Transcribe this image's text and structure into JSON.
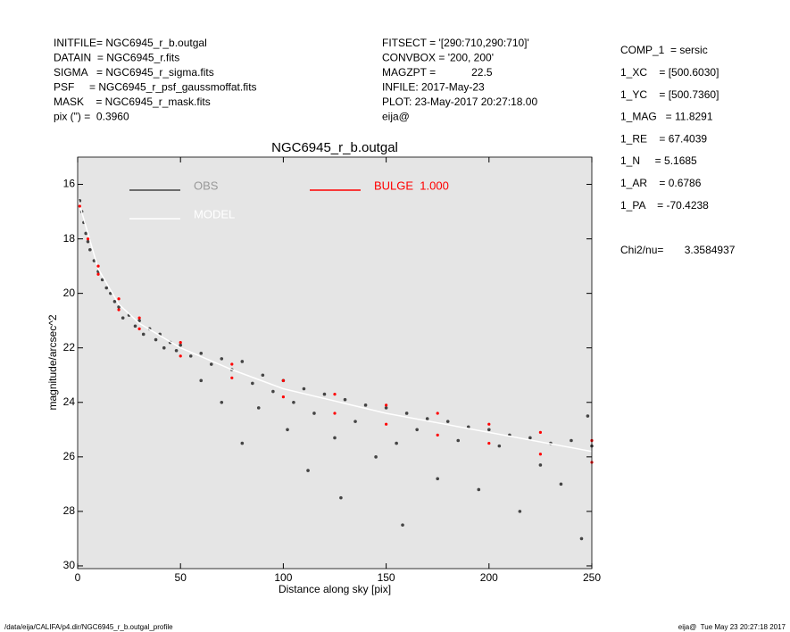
{
  "header": {
    "left": [
      "INITFILE= NGC6945_r_b.outgal",
      "DATAIN  = NGC6945_r.fits",
      "SIGMA   = NGC6945_r_sigma.fits",
      "PSF     = NGC6945_r_psf_gaussmoffat.fits",
      "MASK    = NGC6945_r_mask.fits",
      "pix (\") =  0.3960"
    ],
    "middle": [
      "FITSECT = '[290:710,290:710]'",
      "CONVBOX = '200, 200'",
      "MAGZPT =            22.5",
      "INFILE: 2017-May-23",
      "PLOT: 23-May-2017 20:27:18.00",
      "eija@"
    ],
    "right": [
      "COMP_1  = sersic",
      "1_XC    = [500.6030]",
      "1_YC    = [500.7360]",
      "1_MAG   = 11.8291",
      "1_RE    = 67.4039",
      "1_N     = 5.1685",
      "1_AR    = 0.6786",
      "1_PA    = -70.4238"
    ],
    "chi2": "Chi2/nu=       3.3584937"
  },
  "footer": {
    "left": "/data/eija/CALIFA/p4.dir/NGC6945_r_b.outgal_profile",
    "right": "eija@  Tue May 23 20:27:18 2017"
  },
  "chart_data": {
    "type": "scatter",
    "title": "NGC6945_r_b.outgal",
    "x_label": "Distance along sky [pix]",
    "y_label": "magnitude/arcsec^2",
    "xlim": [
      0,
      250
    ],
    "xticks": [
      0,
      50,
      100,
      150,
      200,
      250
    ],
    "ylim": [
      30.1,
      15
    ],
    "yticks": [
      16,
      18,
      20,
      22,
      24,
      26,
      28,
      30
    ],
    "background": "#e5e5e5",
    "series": [
      {
        "name": "OBS",
        "color": "#444444",
        "x": [
          1,
          2,
          3,
          4,
          5,
          6,
          8,
          10,
          12,
          14,
          16,
          18,
          20,
          22,
          25,
          28,
          30,
          32,
          35,
          38,
          40,
          42,
          45,
          48,
          50,
          55,
          60,
          65,
          70,
          75,
          80,
          85,
          88,
          90,
          95,
          100,
          102,
          105,
          110,
          112,
          115,
          120,
          125,
          128,
          130,
          135,
          140,
          145,
          150,
          155,
          158,
          160,
          165,
          170,
          175,
          180,
          185,
          190,
          195,
          200,
          205,
          210,
          215,
          220,
          225,
          230,
          235,
          240,
          245,
          250,
          248,
          60,
          70,
          80
        ],
        "values": [
          16.6,
          17.0,
          17.4,
          17.8,
          18.1,
          18.4,
          18.8,
          19.2,
          19.5,
          19.8,
          20.0,
          20.3,
          20.5,
          20.9,
          20.8,
          21.2,
          21.0,
          21.5,
          21.3,
          21.7,
          21.5,
          22.0,
          21.8,
          22.1,
          21.9,
          22.3,
          22.2,
          22.6,
          22.4,
          22.8,
          22.5,
          23.3,
          24.2,
          23.0,
          23.6,
          23.2,
          25.0,
          24.0,
          23.5,
          26.5,
          24.4,
          23.7,
          25.3,
          27.5,
          23.9,
          24.7,
          24.1,
          26.0,
          24.2,
          25.5,
          28.5,
          24.4,
          25.0,
          24.6,
          26.8,
          24.7,
          25.4,
          24.9,
          27.2,
          25.0,
          25.6,
          25.2,
          28.0,
          25.3,
          26.3,
          25.5,
          27.0,
          25.4,
          29.0,
          25.6,
          24.5,
          23.2,
          24.0,
          25.5
        ]
      },
      {
        "name": "MODEL",
        "color": "#ffffff",
        "x": [
          0,
          10,
          20,
          30,
          50,
          75,
          100,
          150,
          200,
          250
        ],
        "values": [
          16.5,
          19.1,
          20.4,
          21.1,
          22.0,
          22.8,
          23.5,
          24.4,
          25.1,
          25.8
        ]
      },
      {
        "name": "BULGE  1.000",
        "color": "#ff0000",
        "x": [
          1,
          5,
          10,
          20,
          30,
          50,
          75,
          100,
          125,
          150,
          175,
          200,
          225,
          250,
          10,
          20,
          30,
          50,
          75,
          100,
          125,
          150,
          175,
          200,
          225,
          250
        ],
        "values": [
          16.8,
          18.0,
          19.0,
          20.2,
          20.9,
          21.8,
          22.6,
          23.2,
          23.7,
          24.1,
          24.4,
          24.8,
          25.1,
          25.4,
          19.3,
          20.6,
          21.3,
          22.3,
          23.1,
          23.8,
          24.4,
          24.8,
          25.2,
          25.5,
          25.9,
          26.2
        ]
      }
    ]
  }
}
